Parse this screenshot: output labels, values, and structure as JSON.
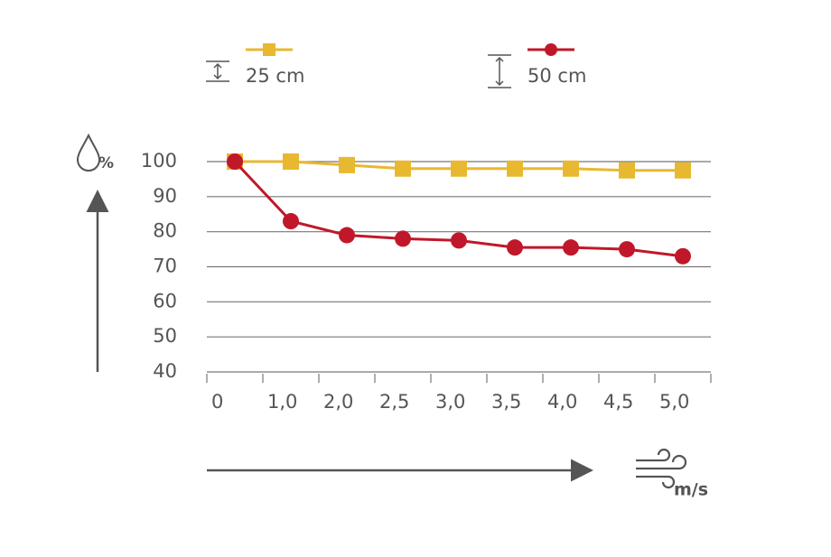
{
  "chart_data": {
    "type": "line",
    "categories": [
      "0",
      "1,0",
      "2,0",
      "2,5",
      "3,0",
      "3,5",
      "4,0",
      "4,5",
      "5,0"
    ],
    "series": [
      {
        "name": "25 cm",
        "color": "#e8b830",
        "marker": "square",
        "values": [
          100,
          100,
          99,
          98,
          98,
          98,
          98,
          97.5,
          97.5
        ]
      },
      {
        "name": "50 cm",
        "color": "#c0182a",
        "marker": "circle",
        "values": [
          100,
          83,
          79,
          78,
          77.5,
          75.5,
          75.5,
          75,
          73
        ]
      }
    ],
    "ylim": [
      40,
      100
    ],
    "yticks": [
      40,
      50,
      60,
      70,
      80,
      90,
      100
    ],
    "y_unit": "%",
    "x_unit": "m/s",
    "grid": true
  }
}
